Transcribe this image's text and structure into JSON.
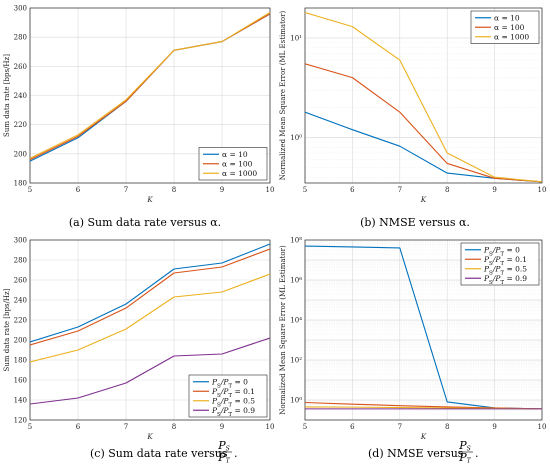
{
  "panels": [
    {
      "caption": "(a) Sum data rate versus α.",
      "type": "line",
      "xlabel": "K",
      "ylabel": "Sum data rate [bps/Hz]",
      "x": [
        5,
        6,
        7,
        8,
        9,
        10
      ],
      "xlim": [
        5,
        10
      ],
      "ylim": [
        180,
        300
      ],
      "yticks": [
        180,
        200,
        220,
        240,
        260,
        280,
        300
      ],
      "yscale": "linear",
      "grid": true,
      "legend_position": "bottom-right",
      "series": [
        {
          "name": "α = 10",
          "color": "#0072BD",
          "values": [
            195,
            211,
            236,
            271,
            277,
            296
          ]
        },
        {
          "name": "α = 100",
          "color": "#D95319",
          "values": [
            196,
            212,
            236,
            271,
            277,
            296
          ]
        },
        {
          "name": "α = 1000",
          "color": "#EDB120",
          "values": [
            197,
            213,
            237,
            271,
            277,
            297
          ]
        }
      ]
    },
    {
      "caption": "(b) NMSE versus α.",
      "type": "line",
      "xlabel": "K",
      "ylabel": "Normalized Mean Square Error (ML Estimator)",
      "x": [
        5,
        6,
        7,
        8,
        9,
        10
      ],
      "xlim": [
        5,
        10
      ],
      "ylim": [
        0.35,
        20
      ],
      "ytick_values": [
        1,
        10
      ],
      "ytick_labels": [
        "10⁰",
        "10¹"
      ],
      "yscale": "log",
      "grid": true,
      "legend_position": "top-right",
      "series": [
        {
          "name": "α = 10",
          "color": "#0072BD",
          "values": [
            1.8,
            1.2,
            0.82,
            0.44,
            0.39,
            0.36
          ]
        },
        {
          "name": "α = 100",
          "color": "#D95319",
          "values": [
            5.5,
            4.0,
            1.8,
            0.55,
            0.39,
            0.36
          ]
        },
        {
          "name": "α = 1000",
          "color": "#EDB120",
          "values": [
            18,
            13,
            6,
            0.7,
            0.4,
            0.36
          ]
        }
      ]
    },
    {
      "caption": "(c) Sum data rate versus",
      "type": "line",
      "xlabel": "K",
      "ylabel": "Sum data rate [bps/Hz]",
      "x": [
        5,
        6,
        7,
        8,
        9,
        10
      ],
      "xlim": [
        5,
        10
      ],
      "ylim": [
        120,
        300
      ],
      "yticks": [
        120,
        140,
        160,
        180,
        200,
        220,
        240,
        260,
        280,
        300
      ],
      "yscale": "linear",
      "grid": true,
      "legend_position": "bottom-right",
      "series": [
        {
          "name": "PS/PT = 0",
          "color": "#0072BD",
          "values": [
            198,
            213,
            236,
            271,
            277,
            296
          ]
        },
        {
          "name": "PS/PT = 0.1",
          "color": "#D95319",
          "values": [
            195,
            209,
            232,
            267,
            273,
            291
          ]
        },
        {
          "name": "PS/PT = 0.5",
          "color": "#EDB120",
          "values": [
            178,
            190,
            211,
            243,
            248,
            266
          ]
        },
        {
          "name": "PS/PT = 0.9",
          "color": "#7E2F8E",
          "values": [
            136,
            142,
            157,
            184,
            186,
            202
          ]
        }
      ]
    },
    {
      "caption": "(d) NMSE versus",
      "type": "line",
      "xlabel": "K",
      "ylabel": "Normalized Mean Square Error (ML Estimator)",
      "x": [
        5,
        6,
        7,
        8,
        9,
        10
      ],
      "xlim": [
        5,
        10
      ],
      "ylim": [
        0.1,
        100000000
      ],
      "ytick_values": [
        1,
        100,
        10000,
        1000000,
        100000000
      ],
      "ytick_labels": [
        "10⁰",
        "10²",
        "10⁴",
        "10⁶",
        "10⁸"
      ],
      "yscale": "log",
      "grid": true,
      "legend_position": "top-right",
      "series": [
        {
          "name": "PS/PT = 0",
          "color": "#0072BD",
          "values": [
            50000000,
            45000000,
            40000000,
            0.8,
            0.4,
            0.36
          ]
        },
        {
          "name": "PS/PT = 0.1",
          "color": "#D95319",
          "values": [
            0.75,
            0.62,
            0.52,
            0.45,
            0.4,
            0.36
          ]
        },
        {
          "name": "PS/PT = 0.5",
          "color": "#EDB120",
          "values": [
            0.45,
            0.44,
            0.42,
            0.4,
            0.38,
            0.36
          ]
        },
        {
          "name": "PS/PT = 0.9",
          "color": "#7E2F8E",
          "values": [
            0.36,
            0.36,
            0.36,
            0.36,
            0.36,
            0.36
          ]
        }
      ]
    }
  ]
}
